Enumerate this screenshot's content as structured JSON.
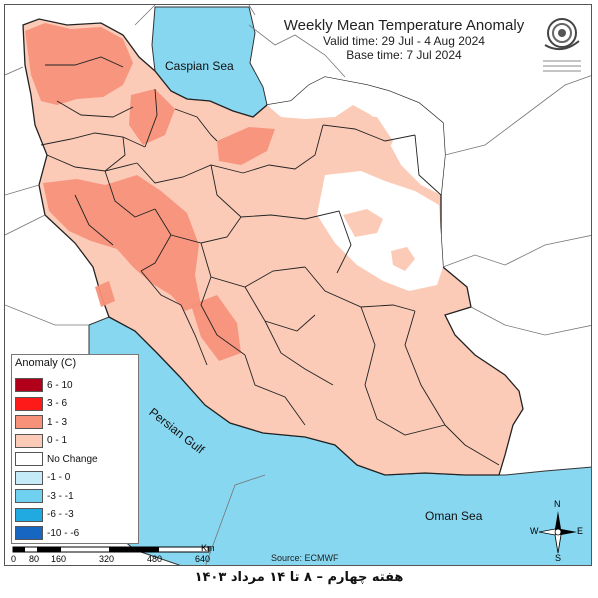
{
  "title": "Weekly Mean Temperature Anomaly",
  "valid_time": "Valid time: 29 Jul - 4 Aug 2024",
  "base_time": "Base time: 7 Jul 2024",
  "labels": {
    "caspian": "Caspian Sea",
    "persian_gulf": "Persian Gulf",
    "oman_sea": "Oman Sea"
  },
  "legend": {
    "title": "Anomaly (C)",
    "items": [
      {
        "label": "6 - 10",
        "color": "#b3001a"
      },
      {
        "label": "3 - 6",
        "color": "#ff1a1a"
      },
      {
        "label": "1 - 3",
        "color": "#f7917a"
      },
      {
        "label": "0 - 1",
        "color": "#fbcbb8"
      },
      {
        "label": "No Change",
        "color": "#ffffff"
      },
      {
        "label": "-1 - 0",
        "color": "#c6ebf8"
      },
      {
        "label": "-3 - -1",
        "color": "#6fd0ef"
      },
      {
        "label": "-6 - -3",
        "color": "#21a9e1"
      },
      {
        "label": "-10 - -6",
        "color": "#1666c2"
      }
    ]
  },
  "scale": {
    "ticks": [
      "0",
      "80",
      "160",
      "320",
      "480",
      "640"
    ],
    "unit": "Km"
  },
  "source": "Source: ECMWF",
  "compass": {
    "n": "N",
    "s": "S",
    "e": "E",
    "w": "W"
  },
  "caption": "هفته چهارم – ۸ تا ۱۴ مرداد ۱۴۰۳",
  "colors": {
    "sea": "#87d7f0",
    "warm_light": "#fbcbb8",
    "warm_mid": "#f7917a",
    "no_change": "#ffffff"
  }
}
